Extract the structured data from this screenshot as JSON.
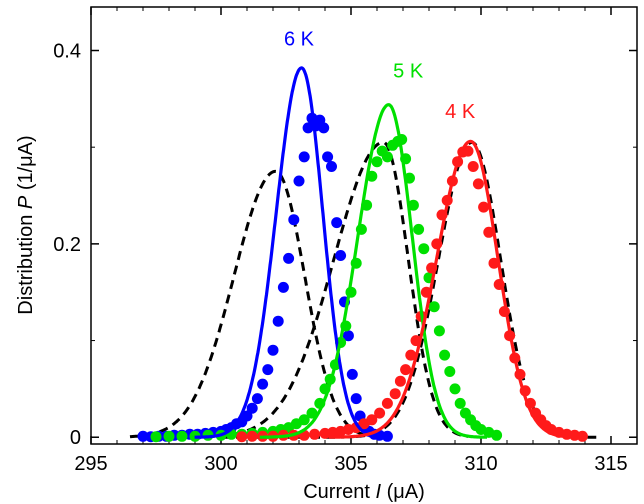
{
  "chart_data": {
    "type": "scatter",
    "title": "",
    "xlabel": {
      "prefix": "Current ",
      "var": "I",
      "unit": " (μA)"
    },
    "ylabel": {
      "prefix": "Distribution ",
      "var": "P",
      "unit": " (1/μA)"
    },
    "xlim": [
      295,
      316
    ],
    "ylim": [
      -0.007,
      0.445
    ],
    "xticks": [
      295,
      300,
      305,
      310,
      315
    ],
    "yticks": [
      0,
      0.2,
      0.4
    ],
    "ytick_labels": [
      "0",
      "0.2",
      "0.4"
    ],
    "grid": false,
    "series": [
      {
        "name": "6 K",
        "color": "#0000ff",
        "label_at": [
          303.0,
          0.405
        ],
        "points": [
          [
            297.0,
            0.001
          ],
          [
            297.3,
            0.0005
          ],
          [
            297.6,
            0.001
          ],
          [
            297.9,
            0.001
          ],
          [
            298.2,
            0.002
          ],
          [
            298.5,
            0.002
          ],
          [
            298.8,
            0.003
          ],
          [
            299.1,
            0.003
          ],
          [
            299.4,
            0.004
          ],
          [
            299.7,
            0.005
          ],
          [
            300.0,
            0.006
          ],
          [
            300.2,
            0.008
          ],
          [
            300.4,
            0.01
          ],
          [
            300.6,
            0.014
          ],
          [
            300.8,
            0.016
          ],
          [
            301.0,
            0.022
          ],
          [
            301.2,
            0.03
          ],
          [
            301.4,
            0.04
          ],
          [
            301.6,
            0.055
          ],
          [
            301.8,
            0.07
          ],
          [
            302.0,
            0.09
          ],
          [
            302.2,
            0.12
          ],
          [
            302.4,
            0.155
          ],
          [
            302.6,
            0.185
          ],
          [
            302.8,
            0.225
          ],
          [
            303.0,
            0.265
          ],
          [
            303.2,
            0.29
          ],
          [
            303.35,
            0.32
          ],
          [
            303.5,
            0.33
          ],
          [
            303.65,
            0.322
          ],
          [
            303.8,
            0.328
          ],
          [
            303.95,
            0.32
          ],
          [
            304.1,
            0.29
          ],
          [
            304.25,
            0.28
          ],
          [
            304.45,
            0.222
          ],
          [
            304.6,
            0.188
          ],
          [
            304.75,
            0.14
          ],
          [
            304.9,
            0.105
          ],
          [
            305.05,
            0.065
          ],
          [
            305.2,
            0.04
          ],
          [
            305.35,
            0.022
          ],
          [
            305.5,
            0.012
          ],
          [
            305.7,
            0.006
          ],
          [
            305.9,
            0.003
          ],
          [
            306.1,
            0.002
          ],
          [
            306.4,
            0.001
          ]
        ],
        "fit_solid": {
          "mu": 303.1,
          "sigma_left": 0.98,
          "sigma_right": 0.82,
          "peak": 0.382
        },
        "fit_dashed": {
          "mu": 302.1,
          "sigma_left": 1.6,
          "sigma_right": 1.12,
          "peak": 0.275,
          "range": [
            296.5,
            306.2
          ]
        }
      },
      {
        "name": "5 K",
        "color": "#00e000",
        "label_at": [
          307.2,
          0.372
        ],
        "points": [
          [
            297.5,
            0.0005
          ],
          [
            298.0,
            0.001
          ],
          [
            298.5,
            0.001
          ],
          [
            299.0,
            0.001
          ],
          [
            299.5,
            0.002
          ],
          [
            300.0,
            0.002
          ],
          [
            300.4,
            0.003
          ],
          [
            300.8,
            0.003
          ],
          [
            301.2,
            0.004
          ],
          [
            301.6,
            0.005
          ],
          [
            302.0,
            0.006
          ],
          [
            302.3,
            0.008
          ],
          [
            302.6,
            0.01
          ],
          [
            302.9,
            0.014
          ],
          [
            303.2,
            0.018
          ],
          [
            303.5,
            0.025
          ],
          [
            303.8,
            0.035
          ],
          [
            304.0,
            0.05
          ],
          [
            304.2,
            0.06
          ],
          [
            304.4,
            0.075
          ],
          [
            304.6,
            0.098
          ],
          [
            304.8,
            0.115
          ],
          [
            305.0,
            0.15
          ],
          [
            305.2,
            0.18
          ],
          [
            305.4,
            0.215
          ],
          [
            305.6,
            0.24
          ],
          [
            305.8,
            0.27
          ],
          [
            306.0,
            0.285
          ],
          [
            306.2,
            0.296
          ],
          [
            306.4,
            0.29
          ],
          [
            306.6,
            0.302
          ],
          [
            306.8,
            0.306
          ],
          [
            306.95,
            0.308
          ],
          [
            307.1,
            0.288
          ],
          [
            307.25,
            0.268
          ],
          [
            307.4,
            0.24
          ],
          [
            307.6,
            0.215
          ],
          [
            307.8,
            0.195
          ],
          [
            308.0,
            0.165
          ],
          [
            308.2,
            0.135
          ],
          [
            308.4,
            0.11
          ],
          [
            308.6,
            0.085
          ],
          [
            308.8,
            0.068
          ],
          [
            309.0,
            0.05
          ],
          [
            309.2,
            0.035
          ],
          [
            309.4,
            0.025
          ],
          [
            309.6,
            0.018
          ],
          [
            309.8,
            0.012
          ],
          [
            310.0,
            0.008
          ],
          [
            310.3,
            0.005
          ],
          [
            310.6,
            0.002
          ]
        ],
        "fit_solid": {
          "mu": 306.45,
          "sigma_left": 1.18,
          "sigma_right": 0.9,
          "peak": 0.344
        },
        "fit_dashed": {
          "mu": 306.25,
          "sigma_left": 1.9,
          "sigma_right": 0.95,
          "peak": 0.305,
          "range": [
            297.0,
            309.5
          ]
        }
      },
      {
        "name": "4 K",
        "color": "#ff1a1a",
        "label_at": [
          309.2,
          0.33
        ],
        "points": [
          [
            300.8,
            0.0005
          ],
          [
            301.2,
            0.001
          ],
          [
            301.6,
            0.001
          ],
          [
            302.0,
            0.001
          ],
          [
            302.4,
            0.002
          ],
          [
            302.8,
            0.002
          ],
          [
            303.2,
            0.002
          ],
          [
            303.6,
            0.003
          ],
          [
            304.0,
            0.004
          ],
          [
            304.3,
            0.005
          ],
          [
            304.6,
            0.006
          ],
          [
            304.9,
            0.008
          ],
          [
            305.2,
            0.01
          ],
          [
            305.5,
            0.014
          ],
          [
            305.8,
            0.018
          ],
          [
            306.1,
            0.025
          ],
          [
            306.4,
            0.035
          ],
          [
            306.7,
            0.045
          ],
          [
            306.9,
            0.058
          ],
          [
            307.1,
            0.07
          ],
          [
            307.3,
            0.085
          ],
          [
            307.5,
            0.1
          ],
          [
            307.7,
            0.125
          ],
          [
            307.9,
            0.15
          ],
          [
            308.1,
            0.175
          ],
          [
            308.3,
            0.2
          ],
          [
            308.5,
            0.23
          ],
          [
            308.7,
            0.245
          ],
          [
            308.9,
            0.265
          ],
          [
            309.1,
            0.285
          ],
          [
            309.3,
            0.295
          ],
          [
            309.5,
            0.296
          ],
          [
            309.7,
            0.28
          ],
          [
            309.9,
            0.262
          ],
          [
            310.1,
            0.238
          ],
          [
            310.3,
            0.212
          ],
          [
            310.5,
            0.18
          ],
          [
            310.7,
            0.158
          ],
          [
            310.9,
            0.13
          ],
          [
            311.1,
            0.105
          ],
          [
            311.3,
            0.082
          ],
          [
            311.5,
            0.065
          ],
          [
            311.7,
            0.048
          ],
          [
            311.9,
            0.035
          ],
          [
            312.1,
            0.025
          ],
          [
            312.3,
            0.018
          ],
          [
            312.5,
            0.012
          ],
          [
            312.7,
            0.008
          ],
          [
            313.0,
            0.005
          ],
          [
            313.3,
            0.003
          ],
          [
            313.6,
            0.002
          ],
          [
            313.9,
            0.001
          ]
        ],
        "fit_solid": {
          "mu": 309.6,
          "sigma_left": 1.3,
          "sigma_right": 1.05,
          "peak": 0.306
        },
        "fit_dashed": {
          "mu": 309.65,
          "sigma_left": 1.28,
          "sigma_right": 1.1,
          "peak": 0.305,
          "range": [
            300.0,
            314.5
          ]
        }
      }
    ]
  }
}
